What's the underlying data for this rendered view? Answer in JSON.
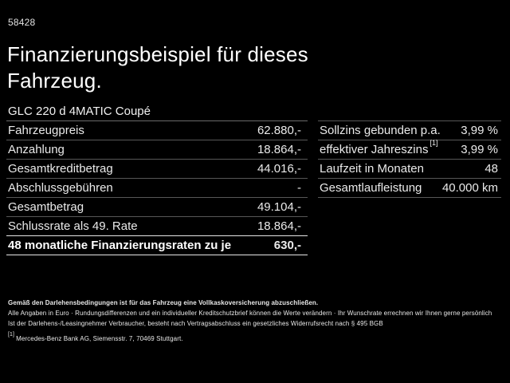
{
  "page": {
    "ref_number": "58428",
    "title_line1": "Finanzierungsbeispiel für dieses",
    "title_line2": "Fahrzeug.",
    "vehicle_model": "GLC 220 d 4MATIC Coupé"
  },
  "left_table": {
    "rows": [
      {
        "label": "Fahrzeugpreis",
        "value": "62.880,-"
      },
      {
        "label": "Anzahlung",
        "value": "18.864,-"
      },
      {
        "label": "Gesamtkreditbetrag",
        "value": "44.016,-"
      },
      {
        "label": "Abschlussgebühren",
        "value": "-"
      },
      {
        "label": "Gesamtbetrag",
        "value": "49.104,-"
      },
      {
        "label": "Schlussrate als 49. Rate",
        "value": "18.864,-"
      },
      {
        "label": "48 monatliche Finanzierungsraten zu je",
        "value": "630,-",
        "emphasis": true
      }
    ]
  },
  "right_table": {
    "rows": [
      {
        "label": "Sollzins gebunden p.a.",
        "value": "3,99 %"
      },
      {
        "label": "effektiver Jahreszins",
        "superscript": "[1]",
        "value": "3,99 %"
      },
      {
        "label": "Laufzeit in Monaten",
        "value": "48"
      },
      {
        "label": "Gesamtlaufleistung",
        "value": "40.000 km"
      }
    ]
  },
  "footer": {
    "line1": "Gemäß den Darlehensbedingungen ist für das Fahrzeug eine Vollkaskoversicherung abzuschließen.",
    "line2": "Alle Angaben in Euro · Rundungsdifferenzen und ein individueller Kreditschutzbrief können die Werte verändern · Ihr Wunschrate errechnen wir Ihnen gerne persönlich",
    "line3": "Ist der Darlehens-/Leasingnehmer Verbraucher, besteht nach Vertragsabschluss ein gesetzliches Widerrufsrecht nach § 495 BGB",
    "footnote_marker": "[1]",
    "footnote_text": "Mercedes-Benz Bank AG, Siemensstr. 7, 70469 Stuttgart."
  },
  "colors": {
    "background": "#000000",
    "text": "#f0f0f0",
    "separator": "#575757",
    "emphasis_line": "#e6e6e6"
  }
}
